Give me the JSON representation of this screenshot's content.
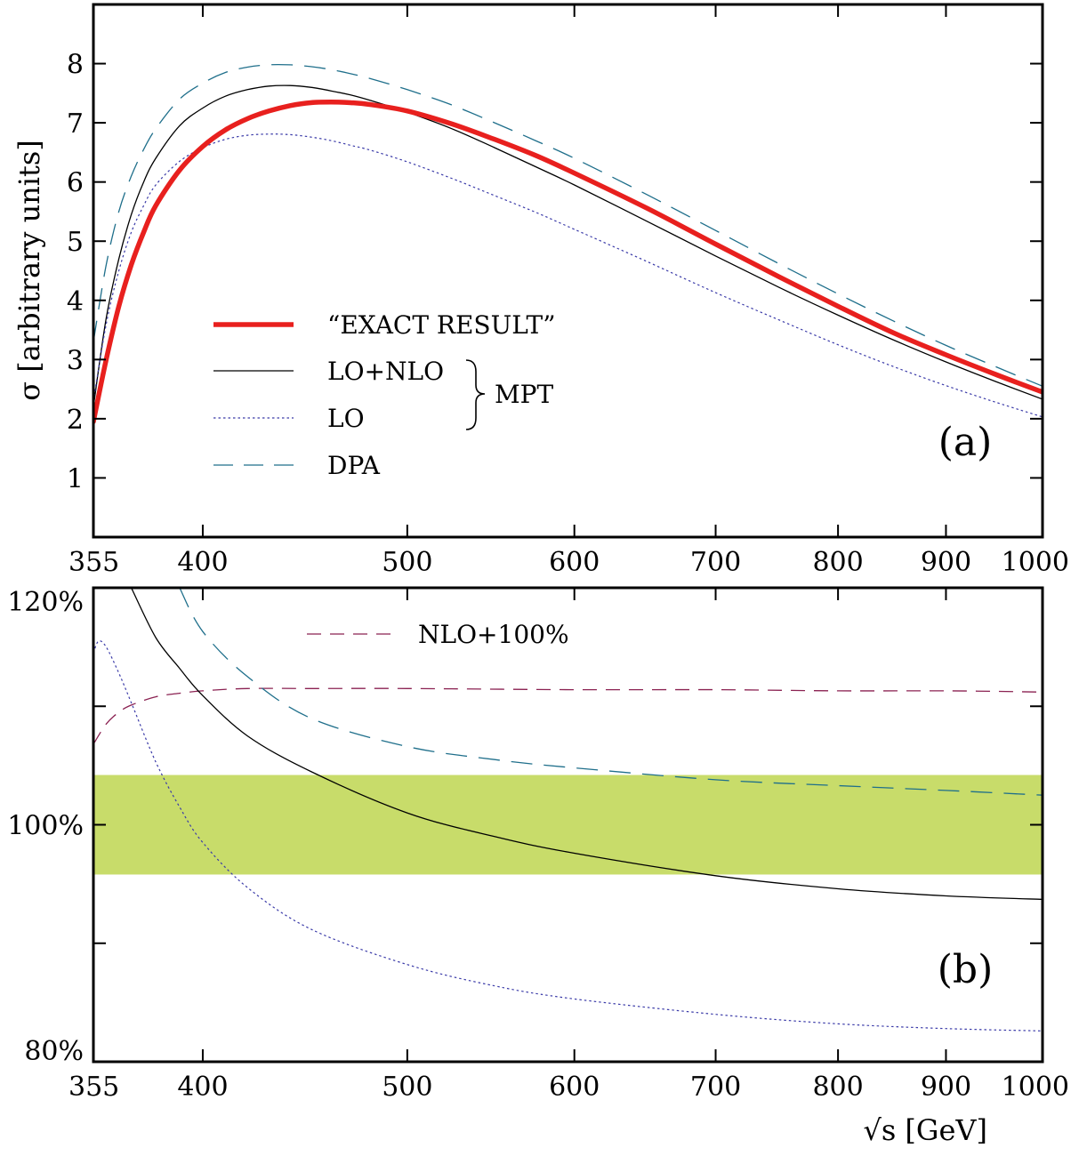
{
  "colors": {
    "exact": "#e8201e",
    "lo_nlo": "#000000",
    "lo": "#3a3aa8",
    "dpa": "#1f6f8b",
    "nlo100": "#8b2252",
    "band": "#c8dc6a"
  },
  "chart_data": [
    {
      "type": "line",
      "panel_label": "(a)",
      "title": "",
      "xlabel": "",
      "ylabel": "σ [arbitrary units]",
      "xlim": [
        355,
        1000
      ],
      "ylim": [
        0,
        9
      ],
      "xscale": "log",
      "xticks": [
        355,
        400,
        500,
        600,
        700,
        800,
        900,
        1000
      ],
      "xticklabels": [
        "355",
        "400",
        "500",
        "600",
        "700",
        "800",
        "900",
        "1000"
      ],
      "yticks": [
        1,
        2,
        3,
        4,
        5,
        6,
        7,
        8
      ],
      "yticklabels": [
        "1",
        "2",
        "3",
        "4",
        "5",
        "6",
        "7",
        "8"
      ],
      "grid": false,
      "legend_position": "lower-left",
      "legend_group_label": "MPT",
      "series": [
        {
          "key": "exact",
          "name": "“EXACT RESULT”",
          "style": "thick-solid",
          "x": [
            355,
            360,
            365,
            370,
            375,
            380,
            390,
            400,
            410,
            420,
            430,
            440,
            450,
            460,
            470,
            480,
            500,
            525,
            550,
            575,
            600,
            650,
            700,
            750,
            800,
            850,
            900,
            950,
            1000
          ],
          "y": [
            1.95,
            3.0,
            3.9,
            4.6,
            5.15,
            5.6,
            6.2,
            6.6,
            6.88,
            7.07,
            7.2,
            7.29,
            7.34,
            7.35,
            7.34,
            7.31,
            7.2,
            6.98,
            6.72,
            6.45,
            6.15,
            5.55,
            4.95,
            4.4,
            3.9,
            3.45,
            3.08,
            2.75,
            2.45
          ]
        },
        {
          "key": "lo_nlo",
          "name": "LO+NLO",
          "style": "thin-solid",
          "x": [
            355,
            360,
            365,
            370,
            375,
            380,
            390,
            400,
            410,
            420,
            430,
            440,
            450,
            460,
            470,
            480,
            500,
            525,
            550,
            575,
            600,
            650,
            700,
            750,
            800,
            850,
            900,
            950,
            1000
          ],
          "y": [
            2.2,
            3.7,
            4.7,
            5.45,
            6.0,
            6.4,
            6.95,
            7.25,
            7.45,
            7.56,
            7.62,
            7.63,
            7.6,
            7.54,
            7.47,
            7.38,
            7.18,
            6.9,
            6.58,
            6.26,
            5.95,
            5.33,
            4.75,
            4.22,
            3.75,
            3.33,
            2.96,
            2.63,
            2.33
          ]
        },
        {
          "key": "lo",
          "name": "LO",
          "style": "dotted",
          "x": [
            355,
            360,
            365,
            370,
            375,
            380,
            390,
            400,
            410,
            420,
            430,
            440,
            450,
            460,
            470,
            480,
            500,
            525,
            550,
            575,
            600,
            650,
            700,
            750,
            800,
            850,
            900,
            950,
            1000
          ],
          "y": [
            2.3,
            3.6,
            4.5,
            5.15,
            5.6,
            5.95,
            6.35,
            6.58,
            6.72,
            6.79,
            6.81,
            6.8,
            6.76,
            6.7,
            6.62,
            6.54,
            6.34,
            6.06,
            5.77,
            5.49,
            5.2,
            4.65,
            4.13,
            3.67,
            3.25,
            2.88,
            2.56,
            2.28,
            2.03
          ]
        },
        {
          "key": "dpa",
          "name": "DPA",
          "style": "long-dash",
          "x": [
            355,
            360,
            365,
            370,
            375,
            380,
            390,
            400,
            410,
            420,
            430,
            440,
            450,
            460,
            470,
            480,
            500,
            525,
            550,
            575,
            600,
            650,
            700,
            750,
            800,
            850,
            900,
            950,
            1000
          ],
          "y": [
            3.3,
            4.6,
            5.5,
            6.1,
            6.55,
            6.9,
            7.4,
            7.67,
            7.85,
            7.94,
            7.98,
            7.98,
            7.95,
            7.9,
            7.83,
            7.75,
            7.56,
            7.3,
            7.0,
            6.7,
            6.4,
            5.78,
            5.18,
            4.62,
            4.11,
            3.65,
            3.24,
            2.88,
            2.55
          ]
        }
      ]
    },
    {
      "type": "line",
      "panel_label": "(b)",
      "title": "",
      "xlabel": "√s [GeV]",
      "ylabel": "",
      "xlim": [
        355,
        1000
      ],
      "ylim": [
        80,
        120
      ],
      "xscale": "log",
      "xticks": [
        355,
        400,
        500,
        600,
        700,
        800,
        900,
        1000
      ],
      "xticklabels": [
        "355",
        "400",
        "500",
        "600",
        "700",
        "800",
        "900",
        "1000"
      ],
      "yticks": [
        80,
        100,
        120
      ],
      "yticklabels": [
        "80%",
        "100%",
        "120%"
      ],
      "yminorticks": [
        90,
        110
      ],
      "grid": false,
      "legend_position": "top-center",
      "band": {
        "y_low": 95.8,
        "y_high": 104.2
      },
      "series": [
        {
          "key": "nlo100",
          "name": "NLO+100%",
          "style": "short-dash",
          "x": [
            355,
            360,
            365,
            370,
            380,
            390,
            400,
            420,
            450,
            500,
            600,
            700,
            800,
            900,
            1000
          ],
          "y": [
            106.8,
            108.5,
            109.5,
            110.1,
            110.8,
            111.1,
            111.3,
            111.5,
            111.5,
            111.5,
            111.4,
            111.4,
            111.3,
            111.3,
            111.2
          ]
        },
        {
          "key": "lo_nlo",
          "name": "LO+NLO",
          "style": "thin-solid",
          "x": [
            370,
            380,
            390,
            400,
            420,
            450,
            500,
            550,
            600,
            700,
            800,
            900,
            1000
          ],
          "y": [
            120.0,
            115.8,
            113.2,
            110.9,
            107.5,
            104.5,
            101.0,
            99.0,
            97.6,
            95.7,
            94.6,
            94.0,
            93.7
          ]
        },
        {
          "key": "lo",
          "name": "LO",
          "style": "dotted",
          "x": [
            355,
            357,
            360,
            365,
            370,
            380,
            390,
            400,
            420,
            450,
            500,
            550,
            600,
            700,
            800,
            900,
            1000
          ],
          "y": [
            114.5,
            115.5,
            115.0,
            112.8,
            110.3,
            105.3,
            101.5,
            98.5,
            94.7,
            91.2,
            88.2,
            86.4,
            85.3,
            84.0,
            83.2,
            82.8,
            82.6
          ]
        },
        {
          "key": "dpa",
          "name": "DPA",
          "style": "long-dash",
          "x": [
            390,
            400,
            420,
            450,
            500,
            550,
            600,
            700,
            800,
            900,
            1000
          ],
          "y": [
            120.0,
            116.3,
            112.5,
            109.0,
            106.6,
            105.5,
            104.8,
            103.8,
            103.3,
            102.9,
            102.5
          ]
        }
      ]
    }
  ]
}
